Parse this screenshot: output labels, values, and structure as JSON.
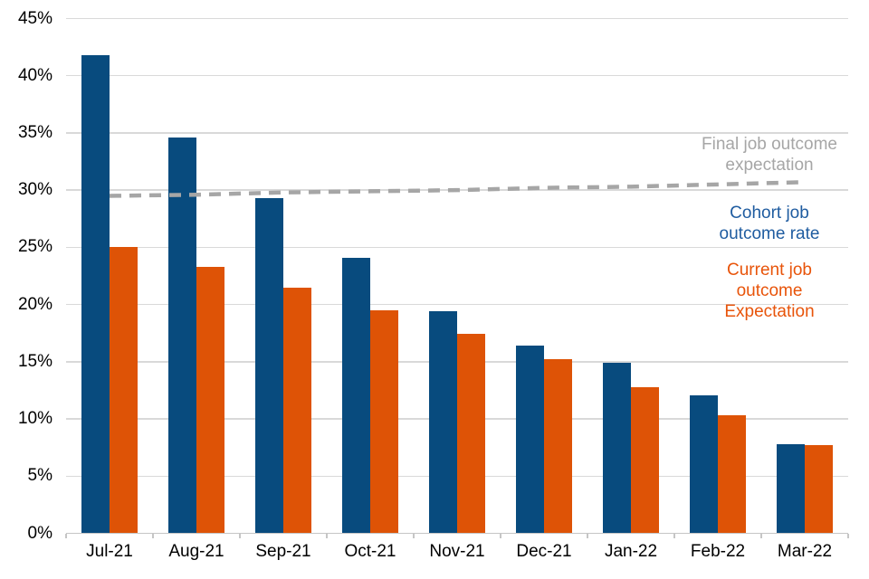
{
  "page": {
    "background": "#FFFFFF"
  },
  "chart_data": {
    "type": "bar",
    "title": "",
    "categories": [
      "Jul-21",
      "Aug-21",
      "Sep-21",
      "Oct-21",
      "Nov-21",
      "Dec-21",
      "Jan-22",
      "Feb-22",
      "Mar-22"
    ],
    "series": [
      {
        "name": "Cohort job outcome rate",
        "type": "bar",
        "color": "#084B7E",
        "values": [
          41.8,
          34.6,
          29.3,
          24.1,
          19.4,
          16.4,
          14.9,
          12.1,
          7.8
        ]
      },
      {
        "name": "Current job outcome Expectation",
        "type": "bar",
        "color": "#DE5306",
        "values": [
          25.0,
          23.3,
          21.5,
          19.5,
          17.4,
          15.2,
          12.8,
          10.3,
          7.7
        ]
      },
      {
        "name": "Final job outcome expectation",
        "type": "line",
        "style": "dashed",
        "color": "#A6A6A6",
        "values": [
          29.5,
          29.6,
          29.8,
          29.9,
          30.0,
          30.2,
          30.3,
          30.5,
          30.7
        ]
      }
    ],
    "y_axis": {
      "min": 0,
      "max": 45,
      "step": 5,
      "tick_labels": [
        "0%",
        "5%",
        "10%",
        "15%",
        "20%",
        "25%",
        "30%",
        "35%",
        "40%",
        "45%"
      ]
    },
    "x_axis": {
      "labels": [
        "Jul-21",
        "Aug-21",
        "Sep-21",
        "Oct-21",
        "Nov-21",
        "Dec-21",
        "Jan-22",
        "Feb-22",
        "Mar-22"
      ]
    },
    "grid": true,
    "legend_position": "right-annotations"
  },
  "annotations": {
    "final": {
      "color": "#A6A6A6",
      "line1": "Final job outcome",
      "line2": "expectation"
    },
    "cohort": {
      "color": "#1F5CA0",
      "line1": "Cohort job",
      "line2": "outcome rate"
    },
    "current": {
      "color": "#E8540A",
      "line1": "Current job",
      "line2": "outcome",
      "line3": "Expectation"
    }
  },
  "styles": {
    "grid_color": "#D9D9D9",
    "axis_color": "#C6C6C6",
    "tick_text_color": "#000000"
  }
}
